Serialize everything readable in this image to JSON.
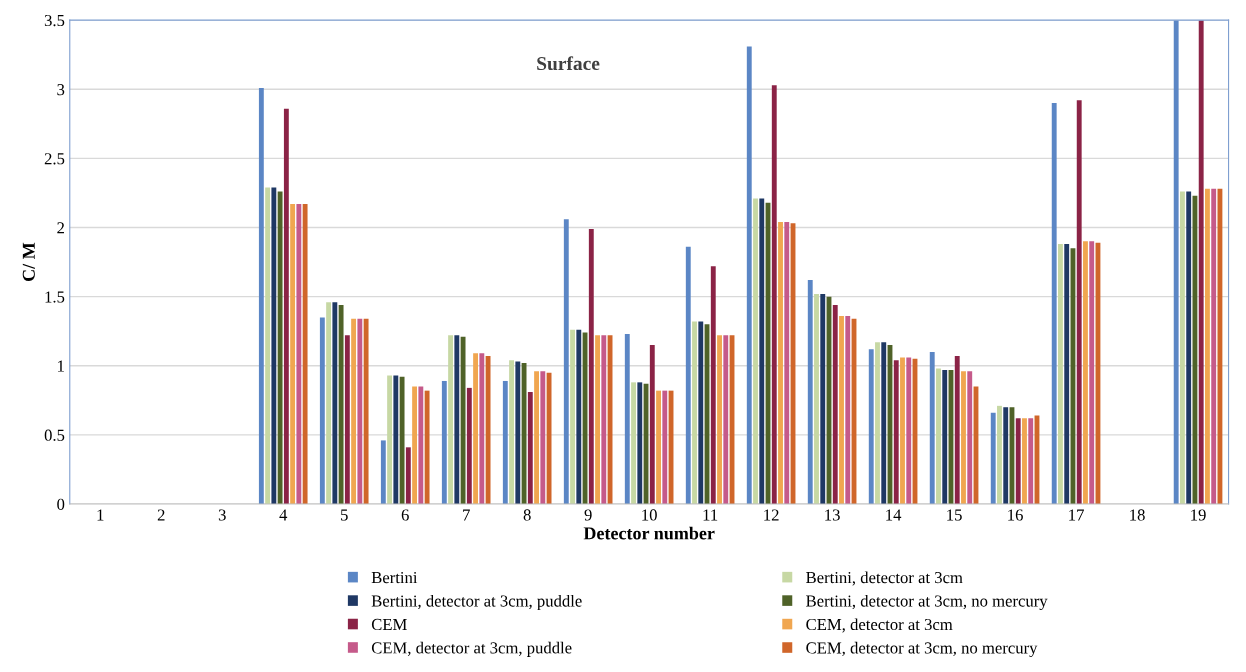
{
  "chart_data": {
    "type": "bar",
    "title": "Surface",
    "xlabel": "Detector number",
    "ylabel": "C/ M",
    "categories": [
      "1",
      "2",
      "3",
      "4",
      "5",
      "6",
      "7",
      "8",
      "9",
      "10",
      "11",
      "12",
      "13",
      "14",
      "15",
      "16",
      "17",
      "18",
      "19"
    ],
    "ylim": [
      0,
      3.5
    ],
    "yticks": [
      0,
      0.5,
      1,
      1.5,
      2,
      2.5,
      3,
      3.5
    ],
    "grid": "y",
    "legend": "bottom",
    "series": [
      {
        "name": "Bertini",
        "color": "#5b86c5",
        "values": [
          null,
          null,
          null,
          3.01,
          1.35,
          0.46,
          0.89,
          0.89,
          2.06,
          1.23,
          1.86,
          3.31,
          1.62,
          1.12,
          1.1,
          0.66,
          2.9,
          null,
          3.5
        ]
      },
      {
        "name": "Bertini, detector at 3cm",
        "color": "#c7d8a4",
        "values": [
          null,
          null,
          null,
          2.29,
          1.46,
          0.93,
          1.22,
          1.04,
          1.26,
          0.88,
          1.32,
          2.21,
          1.52,
          1.17,
          0.98,
          0.71,
          1.88,
          null,
          2.26
        ]
      },
      {
        "name": "Bertini, detector at 3cm, puddle",
        "color": "#1f3864",
        "values": [
          null,
          null,
          null,
          2.29,
          1.46,
          0.93,
          1.22,
          1.03,
          1.26,
          0.88,
          1.32,
          2.21,
          1.52,
          1.17,
          0.97,
          0.7,
          1.88,
          null,
          2.26
        ]
      },
      {
        "name": "Bertini, detector at 3cm, no mercury",
        "color": "#4f6228",
        "values": [
          null,
          null,
          null,
          2.26,
          1.44,
          0.92,
          1.21,
          1.02,
          1.24,
          0.87,
          1.3,
          2.18,
          1.5,
          1.15,
          0.97,
          0.7,
          1.85,
          null,
          2.23
        ]
      },
      {
        "name": "CEM",
        "color": "#8b2346",
        "values": [
          null,
          null,
          null,
          2.86,
          1.22,
          0.41,
          0.84,
          0.81,
          1.99,
          1.15,
          1.72,
          3.03,
          1.44,
          1.04,
          1.07,
          0.62,
          2.92,
          null,
          3.5
        ]
      },
      {
        "name": "CEM, detector at 3cm",
        "color": "#f0a650",
        "values": [
          null,
          null,
          null,
          2.17,
          1.34,
          0.85,
          1.09,
          0.96,
          1.22,
          0.82,
          1.22,
          2.04,
          1.36,
          1.06,
          0.96,
          0.62,
          1.9,
          null,
          2.28
        ]
      },
      {
        "name": "CEM, detector at 3cm, puddle",
        "color": "#c55a8a",
        "values": [
          null,
          null,
          null,
          2.17,
          1.34,
          0.85,
          1.09,
          0.96,
          1.22,
          0.82,
          1.22,
          2.04,
          1.36,
          1.06,
          0.96,
          0.62,
          1.9,
          null,
          2.28
        ]
      },
      {
        "name": "CEM, detector at 3cm, no mercury",
        "color": "#d0662a",
        "values": [
          null,
          null,
          null,
          2.17,
          1.34,
          0.82,
          1.07,
          0.95,
          1.22,
          0.82,
          1.22,
          2.03,
          1.34,
          1.05,
          0.85,
          0.64,
          1.89,
          null,
          2.28
        ]
      }
    ]
  }
}
